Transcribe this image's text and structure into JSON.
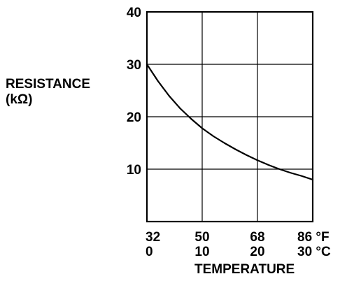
{
  "chart_data": {
    "type": "line",
    "title": "",
    "ylabel": "RESISTANCE",
    "ylabel_unit": "(kΩ)",
    "xlabel": "TEMPERATURE",
    "ylim": [
      0,
      40
    ],
    "yticks": [
      10,
      20,
      30,
      40
    ],
    "ytick_labels": [
      "10",
      "20",
      "30",
      "40"
    ],
    "xlim": [
      0,
      30
    ],
    "xticks_c": [
      0,
      10,
      20,
      30
    ],
    "xtick_labels_f": [
      "32",
      "50",
      "68",
      "86 °F"
    ],
    "xtick_labels_c": [
      "0",
      "10",
      "20",
      "30 °C"
    ],
    "x_unit": "°C",
    "grid": true,
    "series": [
      {
        "values_x": [
          0,
          2,
          4,
          6,
          8,
          10,
          12,
          14,
          16,
          18,
          20,
          22,
          24,
          26,
          28,
          30
        ],
        "values_y": [
          30,
          26.8,
          24.0,
          21.6,
          19.6,
          17.8,
          16.3,
          15.0,
          13.8,
          12.7,
          11.7,
          10.8,
          10.0,
          9.3,
          8.7,
          8.0
        ]
      }
    ]
  }
}
